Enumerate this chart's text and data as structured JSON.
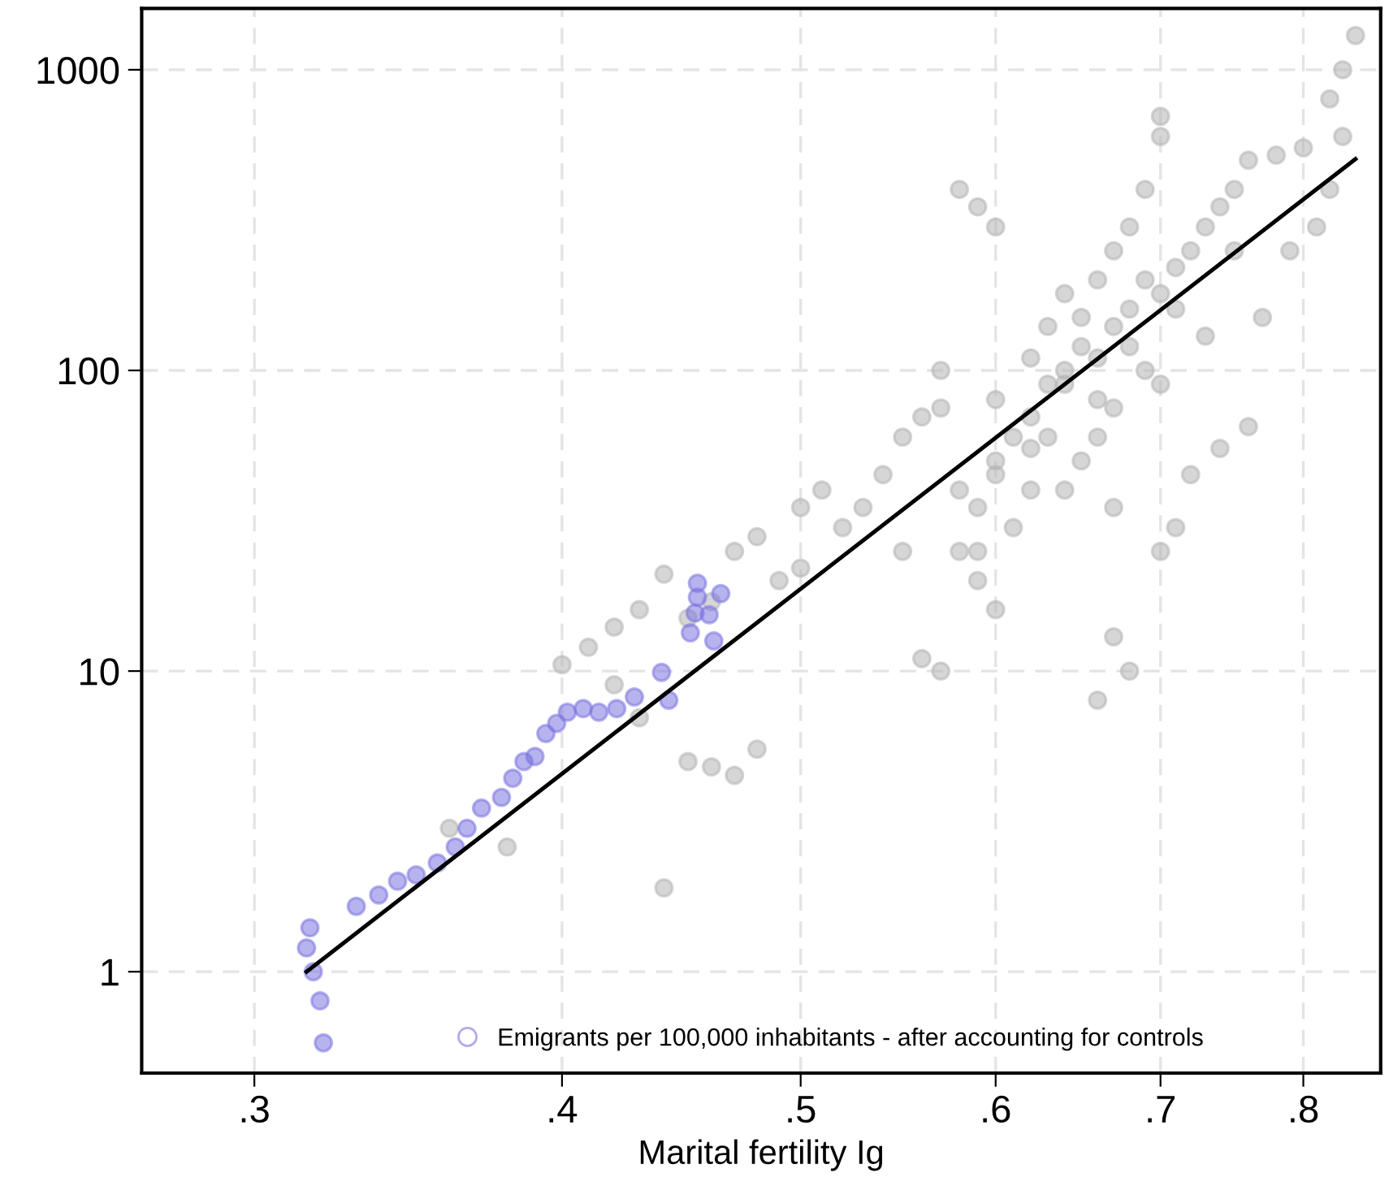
{
  "chart_data": {
    "type": "scatter",
    "xlabel": "Marital fertility Ig",
    "log": "xy",
    "grid": true,
    "legend": "bottom",
    "marker": "circle",
    "xlim": [
      0.27,
      0.86
    ],
    "ylim": [
      0.46,
      1600
    ],
    "xticks": [
      {
        "value": 0.3,
        "label": ".3"
      },
      {
        "value": 0.4,
        "label": ".4"
      },
      {
        "value": 0.5,
        "label": ".5"
      },
      {
        "value": 0.6,
        "label": ".6"
      },
      {
        "value": 0.7,
        "label": ".7"
      },
      {
        "value": 0.8,
        "label": ".8"
      }
    ],
    "yticks": [
      1,
      10,
      100,
      1000
    ],
    "series": [
      {
        "color": "#b4b4b4",
        "x": [
          0.4,
          0.41,
          0.42,
          0.43,
          0.44,
          0.45,
          0.46,
          0.47,
          0.48,
          0.49,
          0.5,
          0.45,
          0.46,
          0.47,
          0.48,
          0.44,
          0.38,
          0.36,
          0.42,
          0.43,
          0.5,
          0.51,
          0.52,
          0.53,
          0.54,
          0.55,
          0.56,
          0.57,
          0.58,
          0.59,
          0.6,
          0.58,
          0.59,
          0.6,
          0.56,
          0.57,
          0.59,
          0.6,
          0.61,
          0.62,
          0.63,
          0.64,
          0.65,
          0.66,
          0.67,
          0.68,
          0.69,
          0.7,
          0.71,
          0.72,
          0.73,
          0.74,
          0.75,
          0.76,
          0.78,
          0.8,
          0.82,
          0.83,
          0.84,
          0.83,
          0.82,
          0.81,
          0.79,
          0.77,
          0.76,
          0.74,
          0.72,
          0.71,
          0.7,
          0.7,
          0.7,
          0.69,
          0.68,
          0.67,
          0.66,
          0.65,
          0.64,
          0.63,
          0.62,
          0.61,
          0.64,
          0.65,
          0.66,
          0.67,
          0.68,
          0.67,
          0.66,
          0.69,
          0.68,
          0.7,
          0.58,
          0.59,
          0.6,
          0.55,
          0.57,
          0.62,
          0.63,
          0.71,
          0.73,
          0.75,
          0.66,
          0.67,
          0.64,
          0.62,
          0.6
        ],
        "values": [
          10.5,
          12,
          14,
          16,
          21,
          15,
          17,
          25,
          28,
          20,
          22,
          5,
          4.8,
          4.5,
          5.5,
          1.9,
          2.6,
          3,
          9,
          7,
          35,
          40,
          30,
          35,
          45,
          60,
          70,
          75,
          40,
          35,
          50,
          25,
          20,
          16,
          11,
          10,
          25,
          80,
          60,
          70,
          90,
          100,
          120,
          80,
          140,
          160,
          200,
          180,
          220,
          250,
          300,
          350,
          400,
          500,
          520,
          550,
          800,
          1000,
          1300,
          600,
          400,
          300,
          250,
          150,
          65,
          55,
          45,
          30,
          25,
          600,
          700,
          400,
          300,
          250,
          200,
          150,
          180,
          60,
          40,
          30,
          40,
          50,
          60,
          35,
          10,
          13,
          8,
          100,
          120,
          90,
          400,
          350,
          300,
          25,
          100,
          110,
          140,
          160,
          130,
          250,
          110,
          75,
          90,
          55,
          45
        ]
      },
      {
        "name": "Emigrants per 100,000 inhabitants - after accounting for controls",
        "color": "#7b74e0",
        "x": [
          0.315,
          0.316,
          0.319,
          0.317,
          0.32,
          0.33,
          0.337,
          0.343,
          0.349,
          0.356,
          0.362,
          0.366,
          0.371,
          0.378,
          0.382,
          0.386,
          0.39,
          0.394,
          0.398,
          0.402,
          0.408,
          0.414,
          0.421,
          0.428,
          0.439,
          0.442,
          0.451,
          0.453,
          0.454,
          0.454,
          0.459,
          0.464,
          0.461
        ],
        "values": [
          1.2,
          1.4,
          0.8,
          1.0,
          0.58,
          1.65,
          1.8,
          2.0,
          2.1,
          2.3,
          2.6,
          3.0,
          3.5,
          3.8,
          4.4,
          5.0,
          5.2,
          6.2,
          6.7,
          7.3,
          7.5,
          7.3,
          7.5,
          8.2,
          9.9,
          8.0,
          13.4,
          15.6,
          17.6,
          19.6,
          15.4,
          18.1,
          12.6
        ]
      },
      {
        "type": "line",
        "marker": "none",
        "color": "#000000",
        "x": [
          0.315,
          0.84
        ],
        "values": [
          1,
          505
        ]
      }
    ]
  }
}
